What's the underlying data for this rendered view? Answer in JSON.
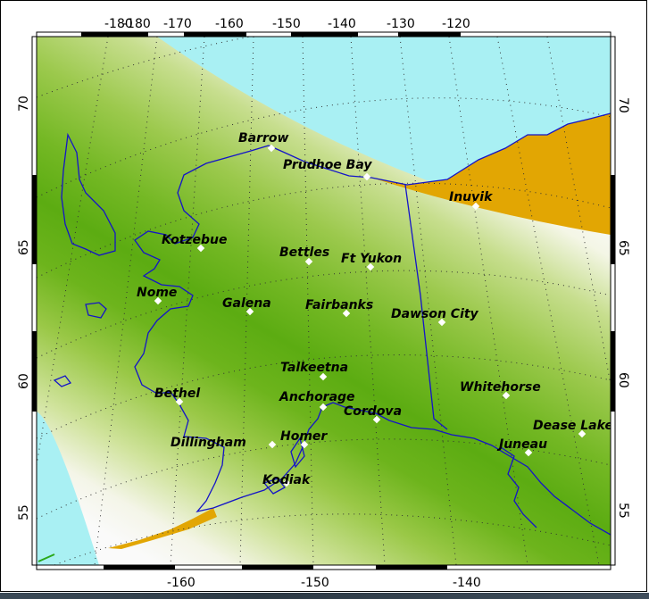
{
  "map": {
    "colors": {
      "ocean": "#a9f0f3",
      "land_dark": "#4fad16",
      "land_light": "#f7f7f0",
      "land_outside": "#e2a603",
      "coast": "#1414c8",
      "border": "#1414c8"
    }
  },
  "axes": {
    "top_ticks": [
      "-180",
      "-170",
      "-160",
      "-150",
      "-140",
      "-130",
      "-120"
    ],
    "bottom_ticks": [
      "-160",
      "-150",
      "-140"
    ],
    "left_ticks": [
      "70",
      "65",
      "60",
      "55"
    ],
    "right_ticks": [
      "70",
      "65",
      "60",
      "55"
    ]
  },
  "places": [
    {
      "name": "Barrow"
    },
    {
      "name": "Prudhoe Bay"
    },
    {
      "name": "Inuvik"
    },
    {
      "name": "Kotzebue"
    },
    {
      "name": "Bettles"
    },
    {
      "name": "Ft Yukon"
    },
    {
      "name": "Nome"
    },
    {
      "name": "Galena"
    },
    {
      "name": "Fairbanks"
    },
    {
      "name": "Dawson City"
    },
    {
      "name": "Talkeetna"
    },
    {
      "name": "Bethel"
    },
    {
      "name": "Anchorage"
    },
    {
      "name": "Cordova"
    },
    {
      "name": "Whitehorse"
    },
    {
      "name": "Dease Lake"
    },
    {
      "name": "Dillingham"
    },
    {
      "name": "Homer"
    },
    {
      "name": "Juneau"
    },
    {
      "name": "Kodiak"
    }
  ]
}
